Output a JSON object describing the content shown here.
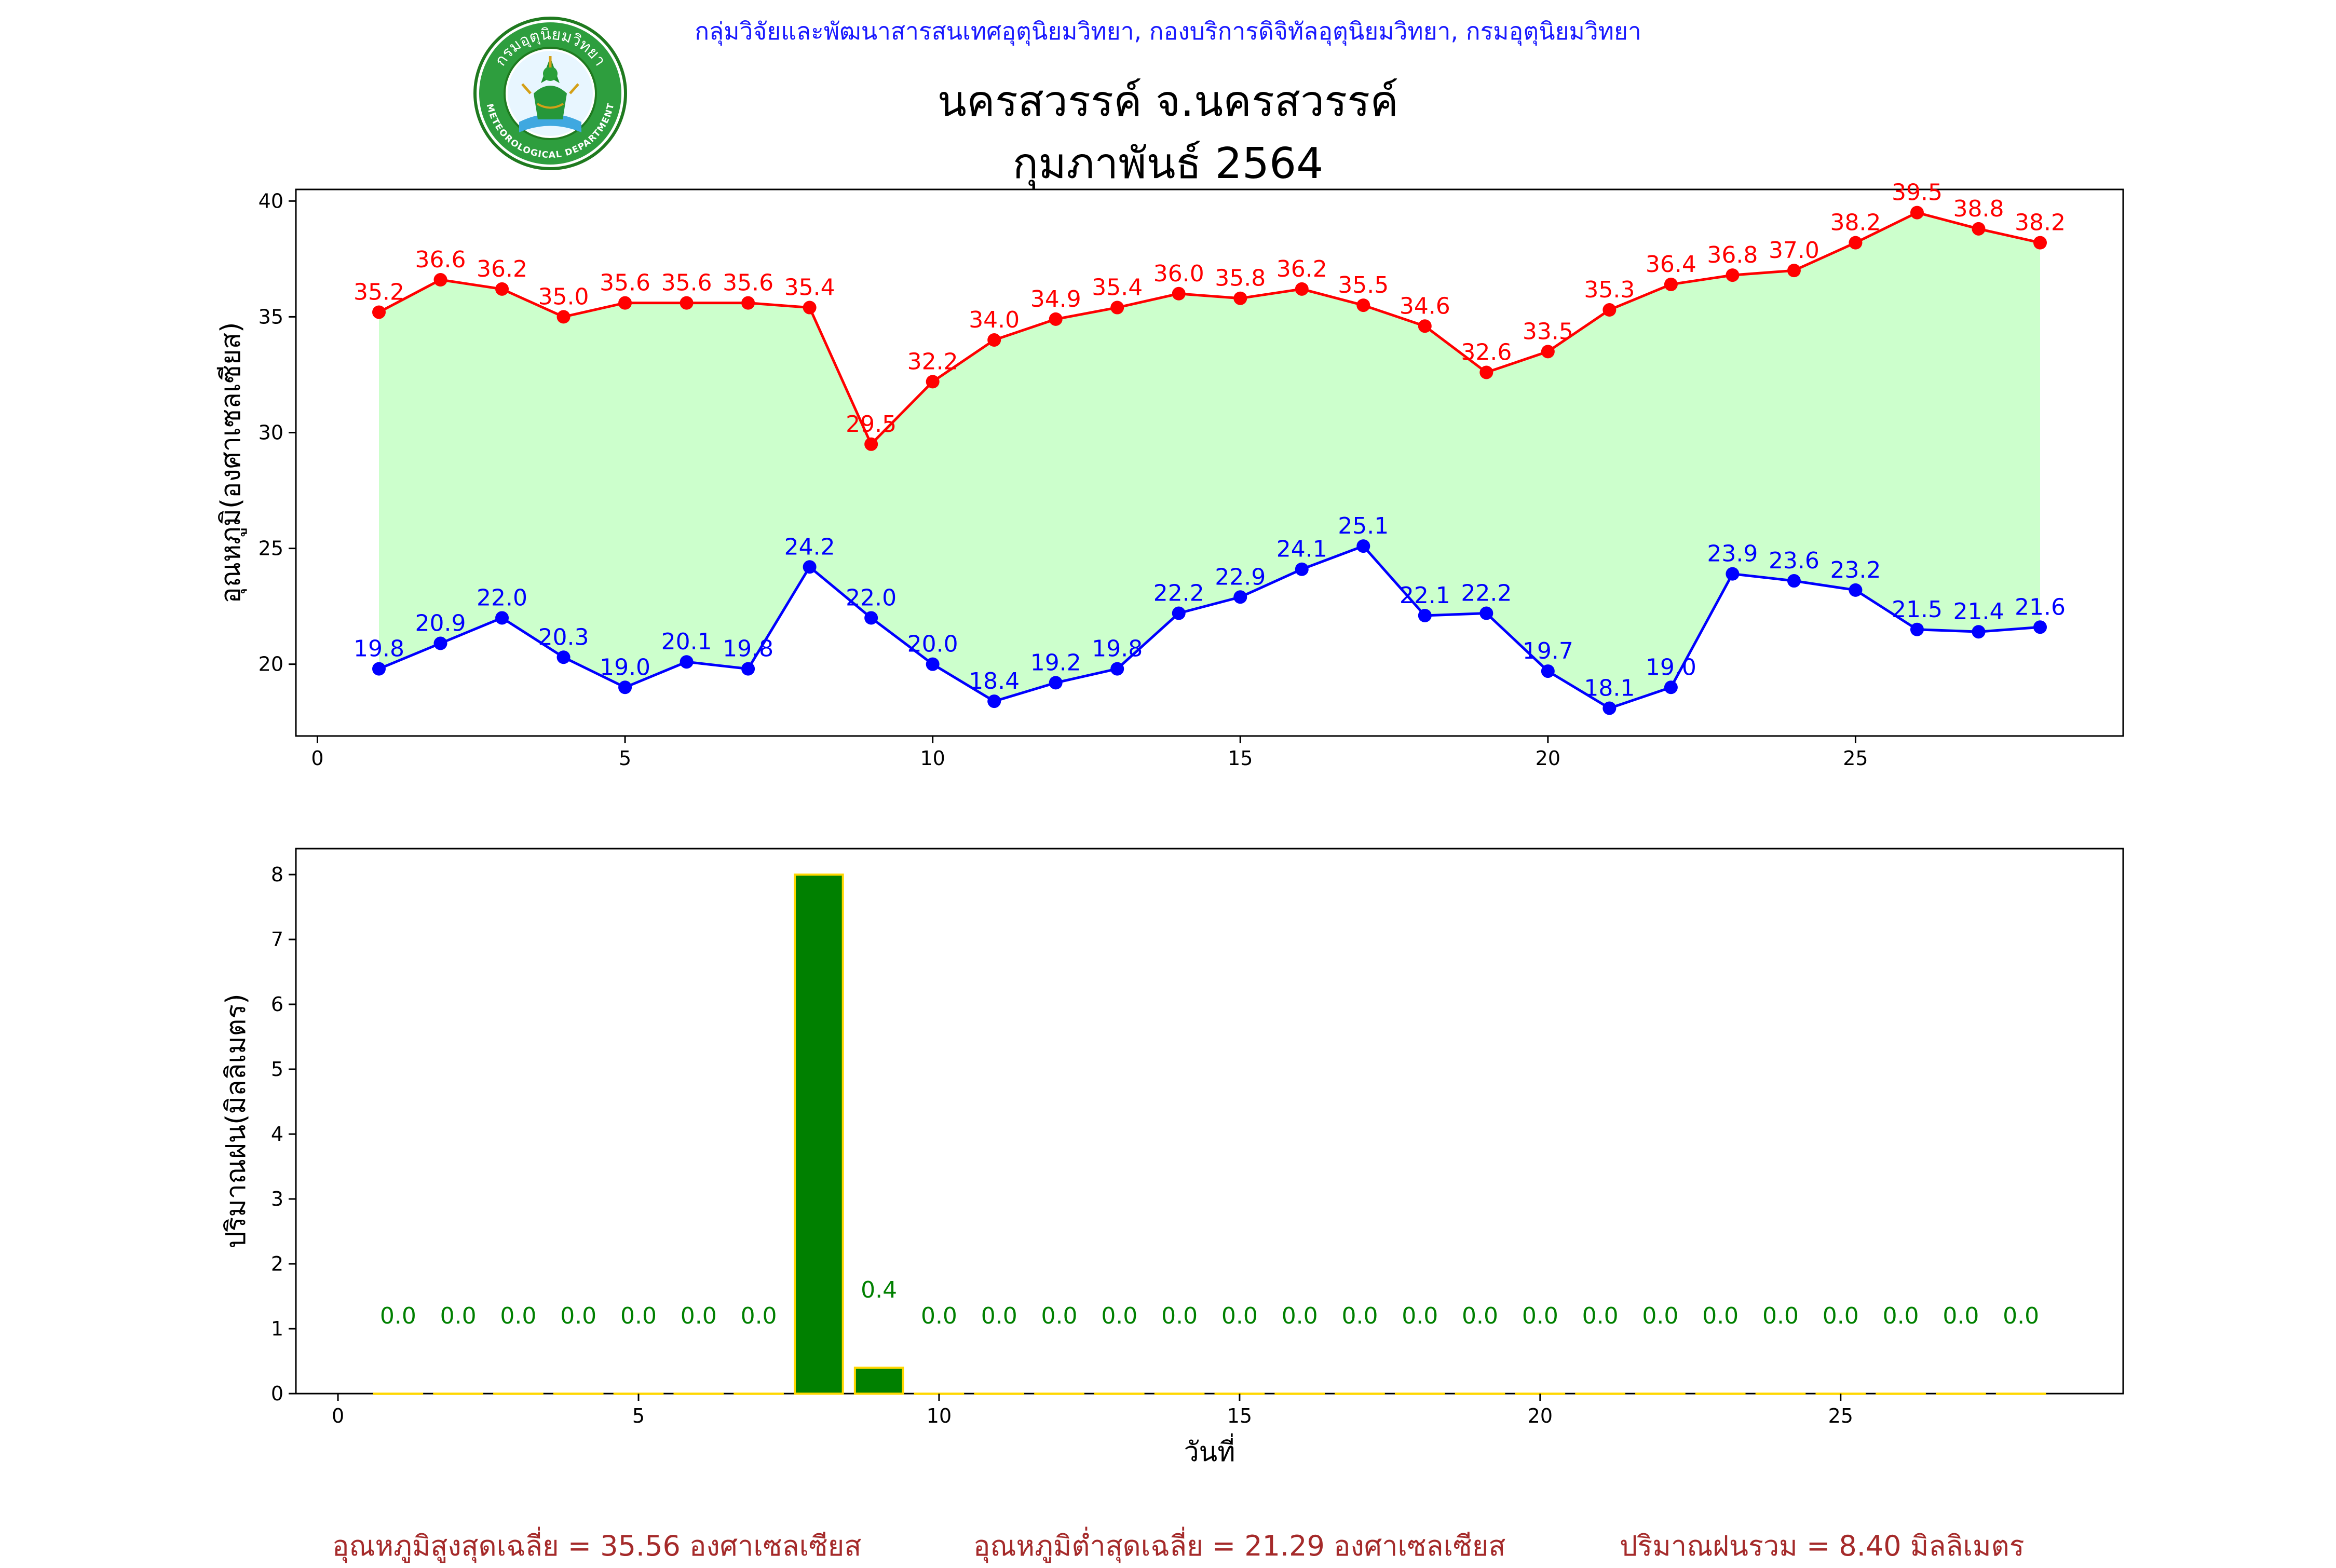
{
  "header": {
    "department": "กลุ่มวิจัยและพัฒนาสารสนเทศอุตุนิยมวิทยา, กองบริการดิจิทัลอุตุนิยมวิทยา, กรมอุตุนิยมวิทยา",
    "station": "นครสวรรค์  จ.นครสวรรค์",
    "month": "กุมภาพันธ์ 2564",
    "logo_text_top": "กรมอุตุนิยมวิทยา",
    "logo_text_bottom": "METEOROLOGICAL DEPARTMENT",
    "logo_icon": "tmd-logo-icon"
  },
  "chart_data": [
    {
      "type": "line",
      "ylabel": "อุณหภูมิ(องศาเซลเซียส)",
      "xlabel": "",
      "x": [
        1,
        2,
        3,
        4,
        5,
        6,
        7,
        8,
        9,
        10,
        11,
        12,
        13,
        14,
        15,
        16,
        17,
        18,
        19,
        20,
        21,
        22,
        23,
        24,
        25,
        26,
        27,
        28
      ],
      "xlim": [
        -0.35,
        29.35
      ],
      "ylim": [
        16.9,
        40.5
      ],
      "xticks": [
        "0",
        "5",
        "10",
        "15",
        "20",
        "25"
      ],
      "yticks": [
        "20",
        "25",
        "30",
        "35",
        "40"
      ],
      "fill_between": {
        "color": "#ccffcc"
      },
      "series": [
        {
          "role": "max",
          "color": "#ff0000",
          "values": [
            35.2,
            36.6,
            36.2,
            35.0,
            35.6,
            35.6,
            35.6,
            35.4,
            29.5,
            32.2,
            34.0,
            34.9,
            35.4,
            36.0,
            35.8,
            36.2,
            35.5,
            34.6,
            32.6,
            33.5,
            35.3,
            36.4,
            36.8,
            37.0,
            38.2,
            39.5,
            38.8,
            38.2
          ],
          "labels": [
            "35.2",
            "36.6",
            "36.2",
            "35.0",
            "35.6",
            "35.6",
            "35.6",
            "35.4",
            "29.5",
            "32.2",
            "34.0",
            "34.9",
            "35.4",
            "36.0",
            "35.8",
            "36.2",
            "35.5",
            "34.6",
            "32.6",
            "33.5",
            "35.3",
            "36.4",
            "36.8",
            "37.0",
            "38.2",
            "39.5",
            "38.8",
            "38.2"
          ]
        },
        {
          "role": "min",
          "color": "#0000ff",
          "values": [
            19.8,
            20.9,
            22.0,
            20.3,
            19.0,
            20.1,
            19.8,
            24.2,
            22.0,
            20.0,
            18.4,
            19.2,
            19.8,
            22.2,
            22.9,
            24.1,
            25.1,
            22.1,
            22.2,
            19.7,
            18.1,
            19.0,
            23.9,
            23.6,
            23.2,
            21.5,
            21.4,
            21.6
          ],
          "labels": [
            "19.8",
            "20.9",
            "22.0",
            "20.3",
            "19.0",
            "20.1",
            "19.8",
            "24.2",
            "22.0",
            "20.0",
            "18.4",
            "19.2",
            "19.8",
            "22.2",
            "22.9",
            "24.1",
            "25.1",
            "22.1",
            "22.2",
            "19.7",
            "18.1",
            "19.0",
            "23.9",
            "23.6",
            "23.2",
            "21.5",
            "21.4",
            "21.6"
          ]
        }
      ]
    },
    {
      "type": "bar",
      "ylabel": "ปริมาณฝน(มิลลิเมตร)",
      "xlabel": "วันที่",
      "x": [
        1,
        2,
        3,
        4,
        5,
        6,
        7,
        8,
        9,
        10,
        11,
        12,
        13,
        14,
        15,
        16,
        17,
        18,
        19,
        20,
        21,
        22,
        23,
        24,
        25,
        26,
        27,
        28
      ],
      "xlim": [
        -0.7,
        29.7
      ],
      "ylim": [
        0,
        8.4
      ],
      "xticks": [
        "0",
        "5",
        "10",
        "15",
        "20",
        "25"
      ],
      "yticks": [
        "0",
        "1",
        "2",
        "3",
        "4",
        "5",
        "6",
        "7",
        "8"
      ],
      "bar_color": "#008000",
      "edge_color": "#ffd700",
      "values": [
        0.0,
        0.0,
        0.0,
        0.0,
        0.0,
        0.0,
        0.0,
        8.0,
        0.4,
        0.0,
        0.0,
        0.0,
        0.0,
        0.0,
        0.0,
        0.0,
        0.0,
        0.0,
        0.0,
        0.0,
        0.0,
        0.0,
        0.0,
        0.0,
        0.0,
        0.0,
        0.0,
        0.0
      ],
      "labels": [
        "0.0",
        "0.0",
        "0.0",
        "0.0",
        "0.0",
        "0.0",
        "0.0",
        "8.0",
        "0.4",
        "0.0",
        "0.0",
        "0.0",
        "0.0",
        "0.0",
        "0.0",
        "0.0",
        "0.0",
        "0.0",
        "0.0",
        "0.0",
        "0.0",
        "0.0",
        "0.0",
        "0.0",
        "0.0",
        "0.0",
        "0.0",
        "0.0"
      ]
    }
  ],
  "summary": {
    "avg_max": "อุณหภูมิสูงสุดเฉลี่ย = 35.56 องศาเซลเซียส",
    "avg_min": "อุณหภูมิต่ำสุดเฉลี่ย = 21.29 องศาเซลเซียส",
    "total_rain": "ปริมาณฝนรวม = 8.40 มิลลิเมตร"
  }
}
